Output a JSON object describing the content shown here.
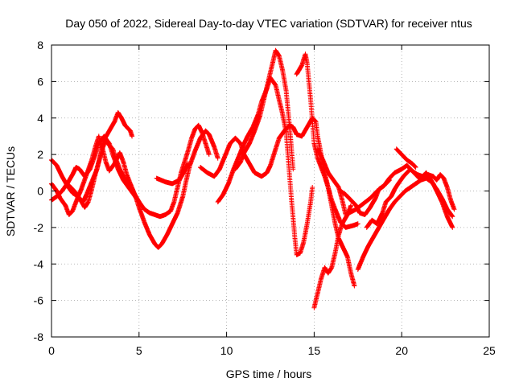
{
  "chart_data": {
    "type": "scatter",
    "title": "Day 050 of 2022, Sidereal Day-to-day VTEC variation (SDTVAR) for receiver ntus",
    "xlabel": "GPS time / hours",
    "ylabel": "SDTVAR / TECUs",
    "xlim": [
      0,
      25
    ],
    "ylim": [
      -8,
      8
    ],
    "xticks": [
      0,
      5,
      10,
      15,
      20,
      25
    ],
    "yticks": [
      -8,
      -6,
      -4,
      -2,
      0,
      2,
      4,
      6,
      8
    ],
    "grid": true,
    "marker": "+",
    "color": "#ff0000",
    "tracks": [
      [
        [
          0.0,
          1.7
        ],
        [
          0.3,
          1.4
        ],
        [
          0.6,
          0.8
        ],
        [
          0.9,
          0.3
        ],
        [
          1.2,
          -0.1
        ],
        [
          1.5,
          -0.3
        ],
        [
          1.8,
          -0.6
        ],
        [
          2.0,
          -0.2
        ],
        [
          2.3,
          0.5
        ],
        [
          2.6,
          1.2
        ],
        [
          2.8,
          2.0
        ],
        [
          3.0,
          2.8
        ],
        [
          3.3,
          3.3
        ],
        [
          3.6,
          3.8
        ],
        [
          3.8,
          4.3
        ],
        [
          4.0,
          4.0
        ],
        [
          4.2,
          3.6
        ],
        [
          4.5,
          3.3
        ],
        [
          4.6,
          3.0
        ]
      ],
      [
        [
          0.0,
          -0.5
        ],
        [
          0.3,
          -0.3
        ],
        [
          0.6,
          0.0
        ],
        [
          0.9,
          0.4
        ],
        [
          1.2,
          0.9
        ],
        [
          1.4,
          1.3
        ],
        [
          1.6,
          1.2
        ],
        [
          1.9,
          0.8
        ],
        [
          2.2,
          1.2
        ],
        [
          2.5,
          2.0
        ],
        [
          2.7,
          2.6
        ],
        [
          3.0,
          3.0
        ],
        [
          3.3,
          2.6
        ],
        [
          3.5,
          2.0
        ],
        [
          3.8,
          1.2
        ],
        [
          4.1,
          0.6
        ],
        [
          4.4,
          0.2
        ],
        [
          4.7,
          -0.2
        ],
        [
          5.0,
          -0.6
        ],
        [
          5.3,
          -1.0
        ],
        [
          5.6,
          -1.2
        ],
        [
          5.9,
          -1.3
        ],
        [
          6.2,
          -1.4
        ],
        [
          6.5,
          -1.3
        ],
        [
          6.8,
          -1.1
        ],
        [
          7.0,
          -0.6
        ],
        [
          7.2,
          0.2
        ],
        [
          7.4,
          1.0
        ],
        [
          7.6,
          1.6
        ],
        [
          7.8,
          2.2
        ],
        [
          8.0,
          2.9
        ],
        [
          8.2,
          3.4
        ],
        [
          8.4,
          3.6
        ],
        [
          8.6,
          3.2
        ],
        [
          8.8,
          2.6
        ],
        [
          9.0,
          2.0
        ]
      ],
      [
        [
          0.0,
          0.4
        ],
        [
          0.3,
          0.0
        ],
        [
          0.5,
          -0.4
        ],
        [
          0.8,
          -0.8
        ],
        [
          1.0,
          -1.3
        ],
        [
          1.2,
          -1.1
        ],
        [
          1.4,
          -0.6
        ],
        [
          1.7,
          0.1
        ],
        [
          2.0,
          0.9
        ],
        [
          2.3,
          1.7
        ],
        [
          2.5,
          2.4
        ],
        [
          2.7,
          3.0
        ],
        [
          2.9,
          2.4
        ],
        [
          3.1,
          1.6
        ],
        [
          3.3,
          1.1
        ],
        [
          3.6,
          1.5
        ],
        [
          3.9,
          2.1
        ],
        [
          4.1,
          1.6
        ],
        [
          4.3,
          0.9
        ],
        [
          4.5,
          0.4
        ],
        [
          4.8,
          -0.3
        ],
        [
          5.0,
          -0.9
        ],
        [
          5.3,
          -1.7
        ],
        [
          5.6,
          -2.4
        ],
        [
          5.9,
          -2.9
        ],
        [
          6.1,
          -3.1
        ],
        [
          6.3,
          -2.9
        ],
        [
          6.6,
          -2.4
        ],
        [
          6.9,
          -1.8
        ],
        [
          7.2,
          -1.2
        ],
        [
          7.5,
          -0.3
        ],
        [
          7.7,
          0.6
        ],
        [
          7.9,
          1.4
        ],
        [
          8.2,
          2.2
        ],
        [
          8.5,
          2.9
        ],
        [
          8.8,
          3.3
        ],
        [
          9.0,
          3.1
        ],
        [
          9.3,
          2.4
        ],
        [
          9.5,
          1.8
        ]
      ],
      [
        [
          1.0,
          0.3
        ],
        [
          1.3,
          0.0
        ],
        [
          1.6,
          -0.4
        ],
        [
          1.9,
          -0.9
        ],
        [
          2.1,
          -0.6
        ],
        [
          2.3,
          0.1
        ],
        [
          2.5,
          0.9
        ],
        [
          2.7,
          1.6
        ],
        [
          2.9,
          2.3
        ],
        [
          3.1,
          2.8
        ],
        [
          3.3,
          2.5
        ],
        [
          3.5,
          2.3
        ],
        [
          3.7,
          1.7
        ],
        [
          3.9,
          1.2
        ],
        [
          4.1,
          0.8
        ],
        [
          4.4,
          0.4
        ],
        [
          4.7,
          -0.1
        ],
        [
          5.0,
          -0.6
        ]
      ],
      [
        [
          6.0,
          0.7
        ],
        [
          6.5,
          0.5
        ],
        [
          6.9,
          0.4
        ],
        [
          7.3,
          0.6
        ],
        [
          7.6,
          1.1
        ],
        [
          7.8,
          1.5
        ]
      ],
      [
        [
          8.5,
          1.3
        ],
        [
          8.9,
          1.0
        ],
        [
          9.3,
          0.8
        ],
        [
          9.6,
          1.2
        ],
        [
          9.9,
          1.9
        ],
        [
          10.2,
          2.6
        ],
        [
          10.5,
          2.9
        ],
        [
          10.8,
          2.6
        ],
        [
          11.0,
          2.0
        ],
        [
          11.3,
          1.5
        ],
        [
          11.6,
          1.0
        ],
        [
          12.0,
          0.8
        ],
        [
          12.3,
          1.0
        ],
        [
          12.5,
          1.4
        ],
        [
          12.8,
          2.3
        ],
        [
          13.0,
          2.9
        ],
        [
          13.3,
          3.3
        ],
        [
          13.6,
          3.6
        ],
        [
          13.8,
          3.5
        ],
        [
          14.0,
          3.1
        ],
        [
          14.3,
          3.0
        ],
        [
          14.6,
          3.5
        ],
        [
          14.9,
          4.0
        ],
        [
          15.1,
          3.8
        ],
        [
          15.2,
          3.0
        ],
        [
          15.4,
          2.0
        ],
        [
          15.6,
          1.0
        ],
        [
          15.8,
          0.2
        ],
        [
          16.0,
          -0.5
        ],
        [
          16.2,
          -1.0
        ],
        [
          16.5,
          -1.7
        ],
        [
          16.8,
          -2.0
        ],
        [
          17.2,
          -1.9
        ],
        [
          17.5,
          -1.8
        ]
      ],
      [
        [
          9.5,
          -0.6
        ],
        [
          9.8,
          -0.2
        ],
        [
          10.1,
          0.4
        ],
        [
          10.4,
          1.2
        ],
        [
          10.7,
          1.9
        ],
        [
          11.0,
          2.6
        ],
        [
          11.2,
          3.0
        ],
        [
          11.5,
          3.5
        ],
        [
          11.8,
          4.2
        ],
        [
          12.0,
          4.9
        ],
        [
          12.3,
          5.6
        ],
        [
          12.5,
          6.2
        ],
        [
          12.8,
          5.8
        ],
        [
          13.0,
          5.0
        ],
        [
          13.2,
          4.2
        ],
        [
          13.4,
          3.2
        ],
        [
          13.5,
          2.0
        ],
        [
          13.6,
          0.8
        ],
        [
          13.7,
          -0.4
        ],
        [
          13.8,
          -1.5
        ],
        [
          13.9,
          -2.6
        ],
        [
          14.0,
          -3.5
        ],
        [
          14.2,
          -3.4
        ],
        [
          14.4,
          -2.8
        ],
        [
          14.6,
          -1.8
        ],
        [
          14.8,
          -0.6
        ],
        [
          14.9,
          0.2
        ]
      ],
      [
        [
          10.5,
          1.2
        ],
        [
          10.8,
          1.6
        ],
        [
          11.0,
          2.1
        ],
        [
          11.3,
          2.6
        ],
        [
          11.6,
          3.3
        ],
        [
          11.9,
          4.1
        ],
        [
          12.1,
          4.9
        ],
        [
          12.3,
          5.7
        ],
        [
          12.5,
          6.5
        ],
        [
          12.7,
          7.3
        ],
        [
          12.8,
          7.7
        ],
        [
          13.0,
          7.4
        ],
        [
          13.2,
          6.6
        ],
        [
          13.4,
          5.5
        ],
        [
          13.5,
          4.5
        ],
        [
          13.6,
          3.5
        ],
        [
          13.7,
          2.4
        ],
        [
          13.8,
          1.2
        ]
      ],
      [
        [
          14.0,
          6.4
        ],
        [
          14.3,
          6.9
        ],
        [
          14.5,
          7.5
        ],
        [
          14.6,
          7.0
        ],
        [
          14.7,
          6.0
        ],
        [
          14.8,
          5.0
        ],
        [
          14.9,
          3.8
        ],
        [
          15.0,
          2.6
        ],
        [
          15.2,
          1.8
        ],
        [
          15.4,
          1.3
        ],
        [
          15.6,
          0.8
        ],
        [
          15.8,
          0.2
        ],
        [
          16.0,
          -0.8
        ],
        [
          16.2,
          -1.8
        ],
        [
          16.4,
          -2.6
        ],
        [
          16.6,
          -3.0
        ],
        [
          16.9,
          -3.6
        ],
        [
          17.1,
          -4.5
        ],
        [
          17.3,
          -5.2
        ]
      ],
      [
        [
          15.0,
          -6.4
        ],
        [
          15.2,
          -5.6
        ],
        [
          15.4,
          -4.8
        ],
        [
          15.6,
          -4.2
        ],
        [
          15.8,
          -4.5
        ],
        [
          16.0,
          -4.2
        ],
        [
          16.2,
          -3.4
        ],
        [
          16.4,
          -2.4
        ],
        [
          16.6,
          -1.8
        ],
        [
          16.9,
          -1.3
        ],
        [
          17.1,
          -0.8
        ]
      ],
      [
        [
          16.5,
          0.0
        ],
        [
          16.8,
          -0.2
        ],
        [
          17.1,
          -0.5
        ],
        [
          17.4,
          -0.8
        ],
        [
          17.6,
          -1.2
        ],
        [
          17.9,
          -1.3
        ],
        [
          18.2,
          -0.9
        ],
        [
          18.5,
          -0.4
        ],
        [
          18.7,
          0.1
        ],
        [
          19.0,
          0.3
        ],
        [
          19.3,
          0.6
        ]
      ],
      [
        [
          17.0,
          -1.2
        ],
        [
          17.4,
          -1.0
        ],
        [
          17.8,
          -0.7
        ],
        [
          18.2,
          -0.4
        ],
        [
          18.6,
          0.0
        ],
        [
          19.0,
          0.3
        ],
        [
          19.3,
          0.7
        ],
        [
          19.6,
          1.0
        ],
        [
          20.0,
          1.2
        ],
        [
          20.3,
          1.4
        ],
        [
          20.6,
          1.1
        ],
        [
          20.9,
          0.9
        ],
        [
          21.2,
          0.8
        ],
        [
          21.5,
          0.9
        ],
        [
          21.8,
          0.8
        ],
        [
          22.0,
          0.6
        ],
        [
          22.2,
          0.9
        ],
        [
          22.4,
          0.7
        ],
        [
          22.6,
          0.2
        ],
        [
          22.8,
          -0.5
        ],
        [
          23.0,
          -1.0
        ]
      ],
      [
        [
          18.0,
          -2.0
        ],
        [
          18.3,
          -1.6
        ],
        [
          18.6,
          -1.8
        ],
        [
          18.9,
          -1.2
        ],
        [
          19.1,
          -0.6
        ],
        [
          19.4,
          -0.3
        ],
        [
          19.6,
          0.1
        ],
        [
          19.8,
          0.4
        ],
        [
          20.1,
          0.8
        ],
        [
          20.3,
          1.0
        ],
        [
          20.5,
          1.2
        ],
        [
          20.7,
          1.0
        ],
        [
          21.0,
          0.7
        ],
        [
          21.2,
          0.8
        ],
        [
          21.4,
          1.0
        ],
        [
          21.6,
          0.7
        ],
        [
          21.8,
          0.4
        ],
        [
          22.0,
          0.0
        ],
        [
          22.3,
          -0.6
        ],
        [
          22.6,
          -1.4
        ],
        [
          22.9,
          -2.0
        ]
      ],
      [
        [
          17.5,
          -4.3
        ],
        [
          17.8,
          -3.6
        ],
        [
          18.1,
          -3.0
        ],
        [
          18.4,
          -2.5
        ],
        [
          18.7,
          -2.0
        ],
        [
          19.0,
          -1.5
        ],
        [
          19.3,
          -1.0
        ],
        [
          19.6,
          -0.6
        ],
        [
          19.9,
          -0.3
        ],
        [
          20.2,
          0.0
        ],
        [
          20.5,
          0.2
        ],
        [
          20.8,
          0.4
        ],
        [
          21.1,
          0.6
        ],
        [
          21.4,
          0.7
        ],
        [
          21.7,
          0.5
        ],
        [
          22.0,
          0.1
        ],
        [
          22.3,
          -0.4
        ],
        [
          22.6,
          -1.0
        ],
        [
          22.9,
          -1.4
        ]
      ],
      [
        [
          19.7,
          2.3
        ],
        [
          20.0,
          2.0
        ],
        [
          20.3,
          1.7
        ],
        [
          20.6,
          1.5
        ],
        [
          20.8,
          1.3
        ]
      ],
      [
        [
          15.2,
          2.3
        ],
        [
          15.5,
          1.7
        ],
        [
          15.8,
          1.0
        ],
        [
          16.1,
          0.6
        ],
        [
          16.4,
          0.2
        ],
        [
          16.6,
          -0.5
        ],
        [
          16.8,
          -1.3
        ]
      ]
    ]
  }
}
